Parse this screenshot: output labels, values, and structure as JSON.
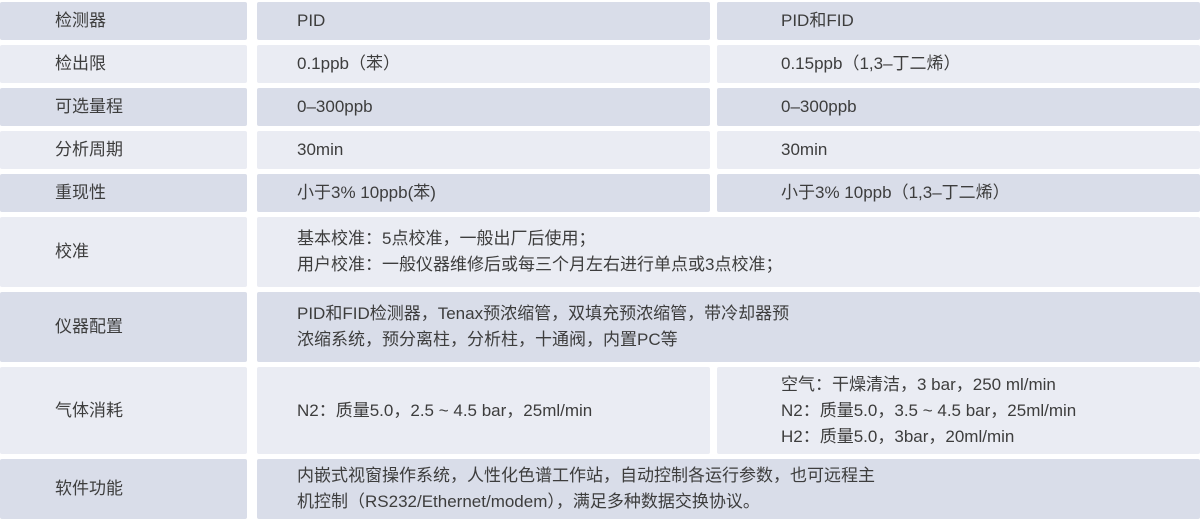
{
  "colors": {
    "row_dark": "#d9dde9",
    "row_light": "#eaecf3",
    "text": "#3d3d3d",
    "background": "#ffffff"
  },
  "table": {
    "rows": [
      {
        "label": "检测器",
        "col2": "PID",
        "col3": "PID和FID"
      },
      {
        "label": "检出限",
        "col2": "0.1ppb（苯）",
        "col3": "0.15ppb（1,3–丁二烯）"
      },
      {
        "label": "可选量程",
        "col2": "0–300ppb",
        "col3": "0–300ppb"
      },
      {
        "label": "分析周期",
        "col2": "30min",
        "col3": "30min"
      },
      {
        "label": "重现性",
        "col2": "小于3% 10ppb(苯)",
        "col3": "小于3% 10ppb（1,3–丁二烯）"
      },
      {
        "label": "校准",
        "span": "基本校准：5点校准，一般出厂后使用；\n用户校准：一般仪器维修后或每三个月左右进行单点或3点校准；"
      },
      {
        "label": "仪器配置",
        "span": "PID和FID检测器，Tenax预浓缩管，双填充预浓缩管，带冷却器预\n浓缩系统，预分离柱，分析柱，十通阀，内置PC等"
      },
      {
        "label": "气体消耗",
        "col2": "N2：质量5.0，2.5 ~ 4.5 bar，25ml/min",
        "col3": "空气：干燥清洁，3 bar，250 ml/min\nN2：质量5.0，3.5 ~ 4.5 bar，25ml/min\nH2：质量5.0，3bar，20ml/min"
      },
      {
        "label": "软件功能",
        "span": "内嵌式视窗操作系统，人性化色谱工作站，自动控制各运行参数，也可远程主\n机控制（RS232/Ethernet/modem），满足多种数据交换协议。"
      }
    ]
  }
}
